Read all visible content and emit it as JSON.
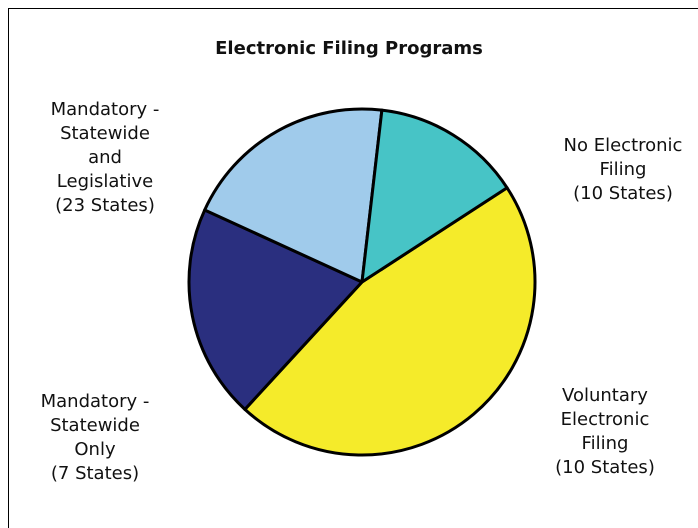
{
  "chart_data": {
    "type": "pie",
    "title": "Electronic Filing Programs",
    "slices": [
      {
        "key": "mandatory_statewide_legislative",
        "value": 23,
        "color": "#F5EB2A",
        "label_lines": [
          "Mandatory -",
          "Statewide",
          "and",
          "Legislative",
          "(23 States)"
        ]
      },
      {
        "key": "no_electronic_filing",
        "value": 10,
        "color": "#2A2F7F",
        "label_lines": [
          "No Electronic",
          "Filing",
          "(10 States)"
        ]
      },
      {
        "key": "voluntary_electronic_filing",
        "value": 10,
        "color": "#A0CBEB",
        "label_lines": [
          "Voluntary",
          "Electronic",
          "Filing",
          "(10 States)"
        ]
      },
      {
        "key": "mandatory_statewide_only",
        "value": 7,
        "color": "#47C4C6",
        "label_lines": [
          "Mandatory -",
          "Statewide",
          "Only",
          "(7 States)"
        ]
      }
    ],
    "start_angle_deg": 57,
    "direction": "clockwise",
    "legend": "none"
  }
}
